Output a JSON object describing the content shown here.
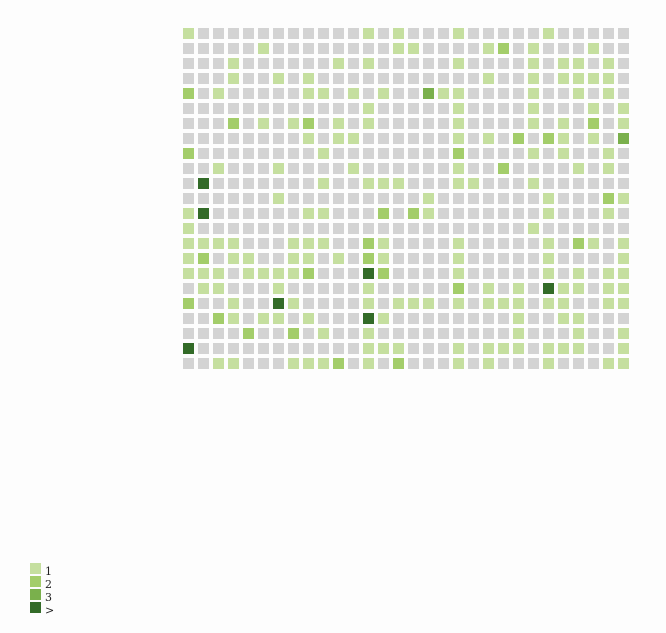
{
  "chart_data": {
    "type": "heatmap",
    "title": "",
    "xlabel": "",
    "ylabel": "",
    "grid_rows": 23,
    "grid_cols": 30,
    "empty_color": "#d3d3d3",
    "level_colors": [
      "#c5df9f",
      "#a3cd6a",
      "#7ab04c",
      "#336b28"
    ],
    "legend": {
      "position": "bottom-left",
      "labels": [
        "1",
        "2",
        "3",
        ">"
      ]
    },
    "values": [
      [
        1,
        0,
        0,
        0,
        0,
        0,
        0,
        0,
        0,
        0,
        0,
        0,
        1,
        0,
        1,
        0,
        0,
        0,
        1,
        0,
        0,
        0,
        0,
        0,
        1,
        0,
        0,
        0,
        0,
        0
      ],
      [
        0,
        0,
        0,
        0,
        0,
        1,
        0,
        0,
        0,
        0,
        0,
        0,
        0,
        0,
        1,
        1,
        0,
        0,
        0,
        0,
        1,
        2,
        0,
        1,
        0,
        0,
        0,
        1,
        0,
        0
      ],
      [
        0,
        0,
        0,
        1,
        0,
        0,
        0,
        0,
        0,
        0,
        1,
        0,
        1,
        0,
        0,
        0,
        0,
        0,
        1,
        0,
        0,
        0,
        0,
        1,
        0,
        1,
        1,
        0,
        1,
        0
      ],
      [
        0,
        0,
        0,
        1,
        0,
        0,
        1,
        0,
        1,
        0,
        0,
        0,
        0,
        0,
        0,
        0,
        0,
        0,
        0,
        0,
        1,
        0,
        0,
        1,
        0,
        1,
        1,
        1,
        1,
        0
      ],
      [
        2,
        0,
        1,
        0,
        0,
        0,
        0,
        0,
        1,
        1,
        0,
        1,
        0,
        1,
        0,
        0,
        3,
        1,
        1,
        0,
        0,
        0,
        0,
        1,
        0,
        0,
        1,
        0,
        1,
        0
      ],
      [
        0,
        0,
        0,
        0,
        0,
        0,
        0,
        0,
        0,
        0,
        0,
        0,
        1,
        0,
        0,
        0,
        0,
        0,
        1,
        0,
        0,
        0,
        0,
        1,
        0,
        0,
        0,
        1,
        0,
        1
      ],
      [
        0,
        0,
        0,
        2,
        0,
        1,
        0,
        1,
        2,
        0,
        1,
        0,
        1,
        0,
        0,
        0,
        0,
        0,
        1,
        0,
        0,
        0,
        0,
        1,
        0,
        1,
        0,
        2,
        0,
        1
      ],
      [
        0,
        0,
        0,
        0,
        0,
        0,
        0,
        0,
        1,
        0,
        1,
        1,
        0,
        0,
        0,
        0,
        0,
        0,
        1,
        0,
        1,
        0,
        2,
        0,
        2,
        1,
        0,
        1,
        0,
        3
      ],
      [
        2,
        0,
        0,
        0,
        0,
        0,
        0,
        0,
        0,
        1,
        0,
        0,
        0,
        0,
        0,
        0,
        0,
        0,
        2,
        0,
        0,
        0,
        0,
        1,
        0,
        1,
        0,
        0,
        1,
        0
      ],
      [
        0,
        0,
        1,
        0,
        0,
        0,
        1,
        0,
        0,
        0,
        0,
        1,
        0,
        0,
        0,
        0,
        0,
        0,
        1,
        0,
        0,
        2,
        0,
        0,
        0,
        0,
        1,
        0,
        1,
        0
      ],
      [
        0,
        4,
        0,
        0,
        0,
        0,
        0,
        0,
        0,
        1,
        0,
        0,
        1,
        1,
        1,
        0,
        0,
        0,
        1,
        1,
        0,
        0,
        0,
        1,
        0,
        0,
        0,
        0,
        0,
        0
      ],
      [
        0,
        0,
        0,
        0,
        0,
        0,
        1,
        0,
        0,
        0,
        0,
        0,
        0,
        0,
        0,
        0,
        1,
        0,
        0,
        0,
        0,
        0,
        0,
        0,
        1,
        0,
        0,
        0,
        2,
        1
      ],
      [
        1,
        4,
        0,
        0,
        0,
        0,
        0,
        0,
        1,
        1,
        0,
        0,
        0,
        2,
        0,
        2,
        1,
        0,
        0,
        0,
        0,
        0,
        0,
        0,
        1,
        0,
        0,
        0,
        1,
        0
      ],
      [
        1,
        0,
        0,
        0,
        0,
        0,
        0,
        0,
        0,
        0,
        0,
        0,
        0,
        0,
        0,
        0,
        0,
        0,
        0,
        0,
        0,
        0,
        0,
        1,
        0,
        0,
        0,
        0,
        0,
        0
      ],
      [
        1,
        1,
        1,
        1,
        0,
        0,
        0,
        1,
        1,
        1,
        0,
        0,
        2,
        1,
        0,
        0,
        0,
        0,
        1,
        0,
        0,
        0,
        0,
        0,
        1,
        0,
        2,
        1,
        0,
        1
      ],
      [
        1,
        2,
        0,
        1,
        1,
        0,
        0,
        1,
        1,
        0,
        1,
        0,
        2,
        1,
        0,
        0,
        0,
        0,
        1,
        0,
        0,
        0,
        0,
        0,
        1,
        0,
        0,
        0,
        0,
        1
      ],
      [
        1,
        1,
        1,
        0,
        1,
        1,
        1,
        1,
        2,
        0,
        0,
        0,
        4,
        2,
        0,
        0,
        0,
        0,
        1,
        0,
        0,
        0,
        0,
        0,
        1,
        0,
        1,
        0,
        1,
        1
      ],
      [
        0,
        1,
        1,
        0,
        0,
        0,
        1,
        0,
        0,
        0,
        0,
        0,
        1,
        0,
        0,
        0,
        0,
        0,
        2,
        0,
        1,
        0,
        1,
        0,
        4,
        1,
        1,
        0,
        1,
        1
      ],
      [
        2,
        0,
        0,
        1,
        0,
        0,
        4,
        1,
        0,
        0,
        0,
        0,
        1,
        0,
        1,
        1,
        1,
        0,
        1,
        0,
        1,
        1,
        1,
        0,
        1,
        1,
        0,
        0,
        1,
        1
      ],
      [
        0,
        0,
        2,
        1,
        0,
        1,
        1,
        0,
        1,
        0,
        0,
        0,
        4,
        1,
        0,
        0,
        0,
        0,
        0,
        0,
        0,
        0,
        1,
        0,
        0,
        1,
        1,
        0,
        0,
        0
      ],
      [
        0,
        0,
        0,
        0,
        2,
        0,
        0,
        2,
        0,
        1,
        0,
        0,
        1,
        0,
        0,
        0,
        0,
        0,
        0,
        0,
        0,
        0,
        1,
        0,
        0,
        0,
        1,
        0,
        0,
        1
      ],
      [
        4,
        0,
        0,
        0,
        0,
        0,
        0,
        0,
        0,
        0,
        0,
        0,
        1,
        1,
        1,
        0,
        0,
        0,
        1,
        0,
        1,
        1,
        1,
        0,
        1,
        1,
        1,
        0,
        0,
        1
      ],
      [
        0,
        0,
        1,
        1,
        0,
        0,
        0,
        1,
        1,
        1,
        2,
        0,
        1,
        0,
        2,
        0,
        0,
        0,
        1,
        0,
        1,
        0,
        0,
        0,
        1,
        0,
        0,
        0,
        1,
        1
      ]
    ]
  }
}
